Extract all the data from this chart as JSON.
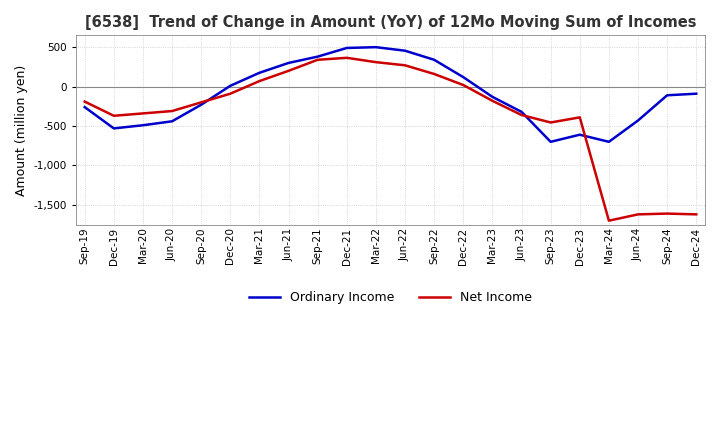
{
  "title": "[6538]  Trend of Change in Amount (YoY) of 12Mo Moving Sum of Incomes",
  "ylabel": "Amount (million yen)",
  "ylim": [
    -1750,
    650
  ],
  "yticks": [
    500,
    0,
    -500,
    -1000,
    -1500
  ],
  "background_color": "#ffffff",
  "grid_color": "#aaaaaa",
  "ordinary_income_color": "#0000cc",
  "net_income_color": "#cc0000",
  "x_labels": [
    "Sep-19",
    "Dec-19",
    "Mar-20",
    "Jun-20",
    "Sep-20",
    "Dec-20",
    "Mar-21",
    "Jun-21",
    "Sep-21",
    "Dec-21",
    "Mar-22",
    "Jun-22",
    "Sep-22",
    "Dec-22",
    "Mar-23",
    "Jun-23",
    "Sep-23",
    "Dec-23",
    "Mar-24",
    "Jun-24",
    "Sep-24",
    "Dec-24"
  ],
  "ordinary_income": [
    -260,
    -530,
    -490,
    -440,
    -230,
    10,
    175,
    300,
    380,
    490,
    500,
    455,
    340,
    120,
    -130,
    -320,
    -700,
    -610,
    -700,
    -430,
    -110,
    -90
  ],
  "net_income": [
    -190,
    -370,
    -340,
    -310,
    -200,
    -90,
    70,
    200,
    340,
    365,
    310,
    270,
    160,
    20,
    -180,
    -360,
    -455,
    -390,
    -1700,
    -1620,
    -1610,
    -1620
  ]
}
